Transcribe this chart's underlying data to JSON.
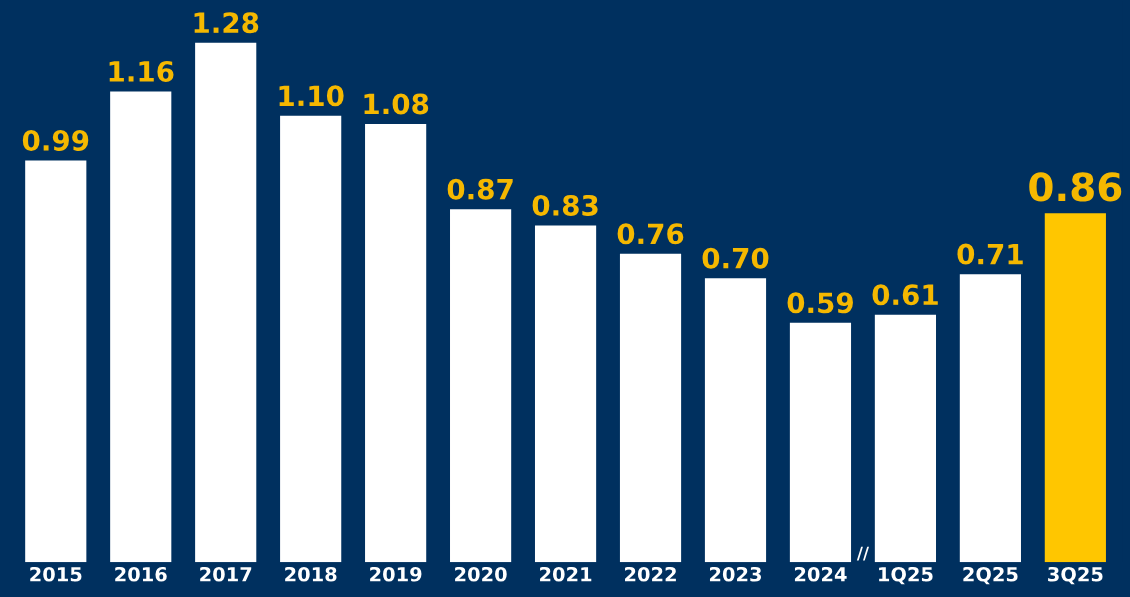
{
  "chart_data": {
    "type": "bar",
    "categories": [
      "2015",
      "2016",
      "2017",
      "2018",
      "2019",
      "2020",
      "2021",
      "2022",
      "2023",
      "2024",
      "1Q25",
      "2Q25",
      "3Q25"
    ],
    "values": [
      0.99,
      1.16,
      1.28,
      1.1,
      1.08,
      0.87,
      0.83,
      0.76,
      0.7,
      0.59,
      0.61,
      0.71,
      0.86
    ],
    "colors": [
      "#ffffff",
      "#ffffff",
      "#ffffff",
      "#ffffff",
      "#ffffff",
      "#ffffff",
      "#ffffff",
      "#ffffff",
      "#ffffff",
      "#ffffff",
      "#ffffff",
      "#ffffff",
      "#ffc600"
    ],
    "value_labels": [
      "0.99",
      "1.16",
      "1.28",
      "1.10",
      "1.08",
      "0.87",
      "0.83",
      "0.76",
      "0.70",
      "0.59",
      "0.61",
      "0.71",
      "0.86"
    ],
    "annotations": [
      {
        "text": "//",
        "x": "1Q25",
        "y": 0
      }
    ],
    "grid": false,
    "legend": false
  }
}
